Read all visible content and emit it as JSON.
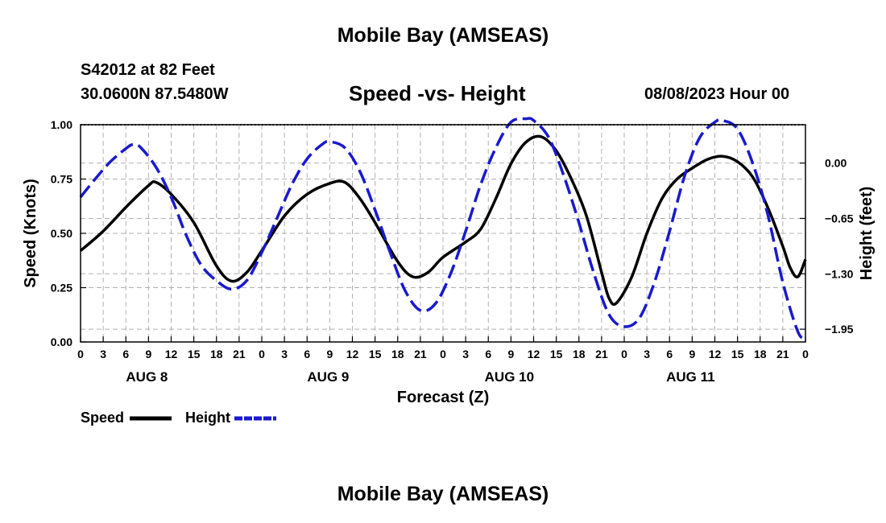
{
  "header": {
    "title": "Mobile Bay (AMSEAS)",
    "station": "S42012 at 82 Feet",
    "coords": "30.0600N  87.5480W",
    "chart_title": "Speed -vs- Height",
    "run_time": "08/08/2023 Hour 00",
    "bottom_title": "Mobile Bay (AMSEAS)"
  },
  "chart_data": {
    "type": "line",
    "title": "Speed -vs- Height",
    "xlabel": "Forecast (Z)",
    "ylabel": "Speed (Knots)",
    "y2label": "Height (feet)",
    "ylim": [
      0,
      1.0
    ],
    "y2lim": [
      -2.1,
      0.45
    ],
    "grid": true,
    "legend_position": "bottom-left",
    "x_ticks_hours": [
      0,
      3,
      6,
      9,
      12,
      15,
      18,
      21,
      24,
      27,
      30,
      33,
      36,
      39,
      42,
      45,
      48,
      51,
      54,
      57,
      60,
      63,
      66,
      69,
      72,
      75,
      78,
      81,
      84,
      87,
      90,
      93,
      96
    ],
    "x_tick_labels": [
      "0",
      "3",
      "6",
      "9",
      "12",
      "15",
      "18",
      "21",
      "0",
      "3",
      "6",
      "9",
      "12",
      "15",
      "18",
      "21",
      "0",
      "3",
      "6",
      "9",
      "12",
      "15",
      "18",
      "21",
      "0",
      "3",
      "6",
      "9",
      "12",
      "15",
      "18",
      "21",
      "0"
    ],
    "x_day_labels": [
      {
        "hour": 9,
        "label": "AUG 8"
      },
      {
        "hour": 33,
        "label": "AUG 9"
      },
      {
        "hour": 57,
        "label": "AUG 10"
      },
      {
        "hour": 81,
        "label": "AUG 11"
      }
    ],
    "y_ticks": [
      0.0,
      0.25,
      0.5,
      0.75,
      1.0
    ],
    "y_tick_labels": [
      "0.00",
      "0.25",
      "0.50",
      "0.75",
      "1.00"
    ],
    "y2_ticks": [
      0.0,
      -0.65,
      -1.3,
      -1.95
    ],
    "y2_tick_labels": [
      "0.00",
      "−0.65",
      "−1.30",
      "−1.95"
    ],
    "series": [
      {
        "name": "Speed",
        "axis": "left",
        "color": "#000000",
        "dash": "solid",
        "points": [
          [
            0,
            0.42
          ],
          [
            3,
            0.51
          ],
          [
            6,
            0.62
          ],
          [
            9,
            0.72
          ],
          [
            10,
            0.735
          ],
          [
            12,
            0.68
          ],
          [
            15,
            0.55
          ],
          [
            18,
            0.35
          ],
          [
            20,
            0.28
          ],
          [
            22,
            0.32
          ],
          [
            24,
            0.42
          ],
          [
            27,
            0.58
          ],
          [
            30,
            0.68
          ],
          [
            33,
            0.73
          ],
          [
            35,
            0.735
          ],
          [
            37,
            0.66
          ],
          [
            39,
            0.55
          ],
          [
            42,
            0.37
          ],
          [
            44,
            0.3
          ],
          [
            46,
            0.32
          ],
          [
            48,
            0.39
          ],
          [
            51,
            0.46
          ],
          [
            53,
            0.52
          ],
          [
            55,
            0.66
          ],
          [
            57,
            0.82
          ],
          [
            59,
            0.92
          ],
          [
            61,
            0.945
          ],
          [
            63,
            0.88
          ],
          [
            65,
            0.75
          ],
          [
            67,
            0.58
          ],
          [
            69,
            0.32
          ],
          [
            70,
            0.2
          ],
          [
            71,
            0.18
          ],
          [
            73,
            0.3
          ],
          [
            75,
            0.5
          ],
          [
            77,
            0.66
          ],
          [
            79,
            0.75
          ],
          [
            81,
            0.8
          ],
          [
            83,
            0.84
          ],
          [
            85,
            0.855
          ],
          [
            87,
            0.83
          ],
          [
            89,
            0.76
          ],
          [
            91,
            0.62
          ],
          [
            93,
            0.44
          ],
          [
            94,
            0.34
          ],
          [
            95,
            0.3
          ],
          [
            96,
            0.38
          ]
        ]
      },
      {
        "name": "Height",
        "axis": "right",
        "color": "#1a1acc",
        "dash": "dashed",
        "points": [
          [
            0,
            -0.4
          ],
          [
            2,
            -0.18
          ],
          [
            4,
            0.02
          ],
          [
            6,
            0.17
          ],
          [
            7,
            0.22
          ],
          [
            8,
            0.18
          ],
          [
            10,
            -0.05
          ],
          [
            12,
            -0.4
          ],
          [
            14,
            -0.85
          ],
          [
            16,
            -1.2
          ],
          [
            18,
            -1.38
          ],
          [
            20,
            -1.48
          ],
          [
            22,
            -1.38
          ],
          [
            24,
            -1.05
          ],
          [
            26,
            -0.65
          ],
          [
            28,
            -0.25
          ],
          [
            30,
            0.05
          ],
          [
            32,
            0.22
          ],
          [
            33,
            0.25
          ],
          [
            35,
            0.18
          ],
          [
            37,
            -0.1
          ],
          [
            39,
            -0.55
          ],
          [
            41,
            -1.05
          ],
          [
            43,
            -1.5
          ],
          [
            45,
            -1.73
          ],
          [
            47,
            -1.65
          ],
          [
            49,
            -1.3
          ],
          [
            51,
            -0.8
          ],
          [
            53,
            -0.25
          ],
          [
            55,
            0.18
          ],
          [
            57,
            0.48
          ],
          [
            59,
            0.52
          ],
          [
            60,
            0.5
          ],
          [
            62,
            0.3
          ],
          [
            64,
            -0.15
          ],
          [
            66,
            -0.7
          ],
          [
            68,
            -1.3
          ],
          [
            70,
            -1.78
          ],
          [
            72,
            -1.92
          ],
          [
            74,
            -1.82
          ],
          [
            76,
            -1.4
          ],
          [
            78,
            -0.8
          ],
          [
            80,
            -0.15
          ],
          [
            82,
            0.3
          ],
          [
            84,
            0.48
          ],
          [
            85,
            0.5
          ],
          [
            87,
            0.4
          ],
          [
            89,
            0.0
          ],
          [
            91,
            -0.6
          ],
          [
            93,
            -1.4
          ],
          [
            95,
            -1.98
          ],
          [
            96,
            -2.05
          ]
        ]
      }
    ]
  },
  "legend": {
    "speed_label": "Speed",
    "height_label": "Height"
  }
}
